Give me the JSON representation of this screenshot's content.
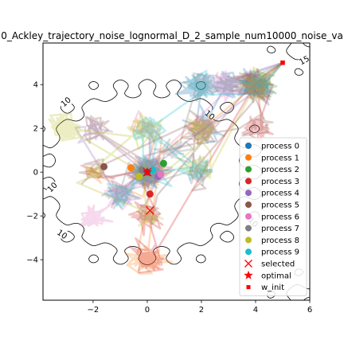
{
  "chart_data": {
    "type": "scatter",
    "title": "0_Ackley_trajectory_noise_lognormal_D_2_sample_num10000_noise_va",
    "xlabel": "",
    "ylabel": "",
    "xlim": [
      -3.85,
      6.0
    ],
    "ylim": [
      -5.85,
      5.9
    ],
    "x_ticks": [
      -2,
      0,
      2,
      4,
      6
    ],
    "y_ticks": [
      -4,
      -2,
      0,
      2,
      4
    ],
    "x_tick_labels": [
      "−2",
      "0",
      "2",
      "4",
      "6"
    ],
    "y_tick_labels": [
      "−4",
      "−2",
      "0",
      "2",
      "4"
    ],
    "grid": false,
    "legend_position": "lower-right",
    "contour_labels": [
      "10",
      "10",
      "10",
      "10",
      "10",
      "15"
    ],
    "legend": [
      {
        "label": "process 0",
        "color": "#1f77b4",
        "marker": "circle"
      },
      {
        "label": "process 1",
        "color": "#ff7f0e",
        "marker": "circle"
      },
      {
        "label": "process 2",
        "color": "#2ca02c",
        "marker": "circle"
      },
      {
        "label": "process 3",
        "color": "#d62728",
        "marker": "circle"
      },
      {
        "label": "process 4",
        "color": "#9467bd",
        "marker": "circle"
      },
      {
        "label": "process 5",
        "color": "#8c564b",
        "marker": "circle"
      },
      {
        "label": "process 6",
        "color": "#e377c2",
        "marker": "circle"
      },
      {
        "label": "process 7",
        "color": "#7f7f7f",
        "marker": "circle"
      },
      {
        "label": "process 8",
        "color": "#bcbd22",
        "marker": "circle"
      },
      {
        "label": "process 9",
        "color": "#17becf",
        "marker": "circle"
      },
      {
        "label": "selected",
        "color": "#ff0000",
        "marker": "x"
      },
      {
        "label": "optimal",
        "color": "#ff0000",
        "marker": "star"
      },
      {
        "label": "w_init",
        "color": "#ff0000",
        "marker": "square"
      }
    ],
    "series": [
      {
        "name": "process 0",
        "x": [
          0.0
        ],
        "y": [
          0.0
        ]
      },
      {
        "name": "process 1",
        "x": [
          -0.6
        ],
        "y": [
          0.2
        ]
      },
      {
        "name": "process 2",
        "x": [
          0.6
        ],
        "y": [
          0.4
        ]
      },
      {
        "name": "process 3",
        "x": [
          0.1
        ],
        "y": [
          -1.0
        ]
      },
      {
        "name": "process 4",
        "x": [
          0.4
        ],
        "y": [
          -0.2
        ]
      },
      {
        "name": "process 5",
        "x": [
          -1.6
        ],
        "y": [
          0.25
        ]
      },
      {
        "name": "process 6",
        "x": [
          0.5
        ],
        "y": [
          -0.1
        ]
      },
      {
        "name": "process 7",
        "x": [
          -0.2
        ],
        "y": [
          0.1
        ]
      },
      {
        "name": "process 8",
        "x": [
          -0.3
        ],
        "y": [
          -0.2
        ]
      },
      {
        "name": "process 9",
        "x": [
          0.2
        ],
        "y": [
          0.1
        ]
      }
    ],
    "selected": [
      {
        "x": 0.0,
        "y": 0.0
      },
      {
        "x": 0.1,
        "y": -1.75
      }
    ],
    "optimal": {
      "x": 0.0,
      "y": 0.0
    },
    "w_init": {
      "x": 5.0,
      "y": 5.0
    }
  }
}
